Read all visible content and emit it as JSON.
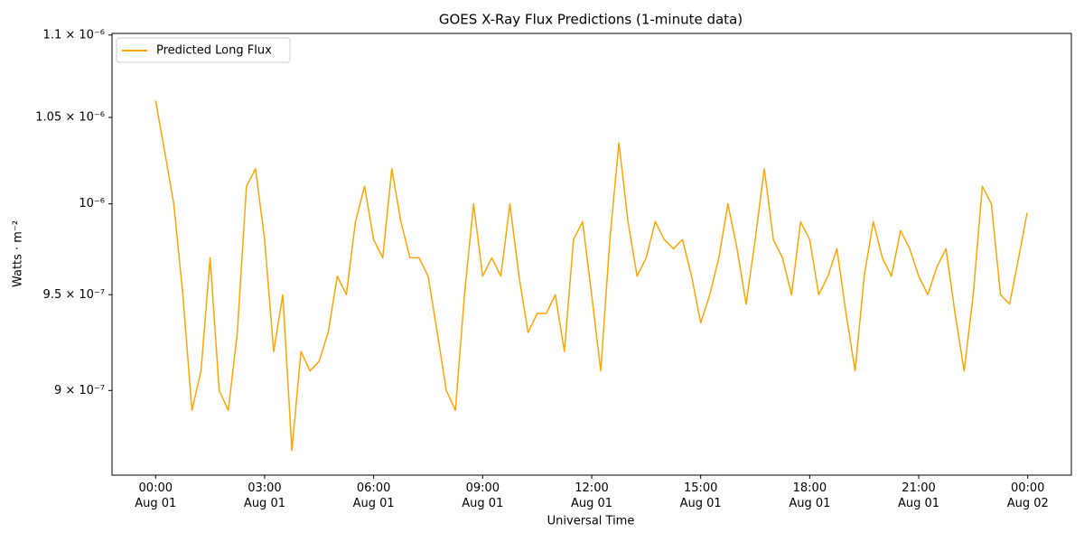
{
  "chart_data": {
    "type": "line",
    "title": "GOES X-Ray Flux Predictions (1-minute data)",
    "x_label": "Universal Time",
    "y_label": "Watts · m⁻²",
    "y_scale": "log",
    "legend": "upper left",
    "grid": false,
    "xlim": [
      "Aug 01 00:00",
      "Aug 02 00:00"
    ],
    "xticks": [
      {
        "value": "Aug 01 00:00",
        "label": "00:00\nAug 01"
      },
      {
        "value": "Aug 01 03:00",
        "label": "03:00\nAug 01"
      },
      {
        "value": "Aug 01 06:00",
        "label": "06:00\nAug 01"
      },
      {
        "value": "Aug 01 09:00",
        "label": "09:00\nAug 01"
      },
      {
        "value": "Aug 01 12:00",
        "label": "12:00\nAug 01"
      },
      {
        "value": "Aug 01 15:00",
        "label": "15:00\nAug 01"
      },
      {
        "value": "Aug 01 18:00",
        "label": "18:00\nAug 01"
      },
      {
        "value": "Aug 01 21:00",
        "label": "21:00\nAug 01"
      },
      {
        "value": "Aug 02 00:00",
        "label": "00:00\nAug 02"
      }
    ],
    "ylim": [
      8.58e-07,
      1.101e-06
    ],
    "yticks": [
      {
        "value": 9e-07,
        "label": "9 × 10⁻⁷"
      },
      {
        "value": 9.5e-07,
        "label": "9.5 × 10⁻⁷"
      },
      {
        "value": 1e-06,
        "label": "10⁻⁶"
      },
      {
        "value": 1.05e-06,
        "label": "1.05 × 10⁻⁶"
      },
      {
        "value": 1.1e-06,
        "label": "1.1 × 10⁻⁶"
      }
    ],
    "x": [
      "Aug 01 00:00",
      "Aug 01 00:15",
      "Aug 01 00:30",
      "Aug 01 00:45",
      "Aug 01 01:00",
      "Aug 01 01:15",
      "Aug 01 01:30",
      "Aug 01 01:45",
      "Aug 01 02:00",
      "Aug 01 02:15",
      "Aug 01 02:30",
      "Aug 01 02:45",
      "Aug 01 03:00",
      "Aug 01 03:15",
      "Aug 01 03:30",
      "Aug 01 03:45",
      "Aug 01 04:00",
      "Aug 01 04:15",
      "Aug 01 04:30",
      "Aug 01 04:45",
      "Aug 01 05:00",
      "Aug 01 05:15",
      "Aug 01 05:30",
      "Aug 01 05:45",
      "Aug 01 06:00",
      "Aug 01 06:15",
      "Aug 01 06:30",
      "Aug 01 06:45",
      "Aug 01 07:00",
      "Aug 01 07:15",
      "Aug 01 07:30",
      "Aug 01 07:45",
      "Aug 01 08:00",
      "Aug 01 08:15",
      "Aug 01 08:30",
      "Aug 01 08:45",
      "Aug 01 09:00",
      "Aug 01 09:15",
      "Aug 01 09:30",
      "Aug 01 09:45",
      "Aug 01 10:00",
      "Aug 01 10:15",
      "Aug 01 10:30",
      "Aug 01 10:45",
      "Aug 01 11:00",
      "Aug 01 11:15",
      "Aug 01 11:30",
      "Aug 01 11:45",
      "Aug 01 12:00",
      "Aug 01 12:15",
      "Aug 01 12:30",
      "Aug 01 12:45",
      "Aug 01 13:00",
      "Aug 01 13:15",
      "Aug 01 13:30",
      "Aug 01 13:45",
      "Aug 01 14:00",
      "Aug 01 14:15",
      "Aug 01 14:30",
      "Aug 01 14:45",
      "Aug 01 15:00",
      "Aug 01 15:15",
      "Aug 01 15:30",
      "Aug 01 15:45",
      "Aug 01 16:00",
      "Aug 01 16:15",
      "Aug 01 16:30",
      "Aug 01 16:45",
      "Aug 01 17:00",
      "Aug 01 17:15",
      "Aug 01 17:30",
      "Aug 01 17:45",
      "Aug 01 18:00",
      "Aug 01 18:15",
      "Aug 01 18:30",
      "Aug 01 18:45",
      "Aug 01 19:00",
      "Aug 01 19:15",
      "Aug 01 19:30",
      "Aug 01 19:45",
      "Aug 01 20:00",
      "Aug 01 20:15",
      "Aug 01 20:30",
      "Aug 01 20:45",
      "Aug 01 21:00",
      "Aug 01 21:15",
      "Aug 01 21:30",
      "Aug 01 21:45",
      "Aug 01 22:00",
      "Aug 01 22:15",
      "Aug 01 22:30",
      "Aug 01 22:45",
      "Aug 01 23:00",
      "Aug 01 23:15",
      "Aug 01 23:30",
      "Aug 01 23:45",
      "Aug 01 23:59"
    ],
    "series": [
      {
        "name": "Predicted Long Flux",
        "color": "#ffa500",
        "values": [
          1.06e-06,
          1.03e-06,
          1e-06,
          9.5e-07,
          8.9e-07,
          9.1e-07,
          9.7e-07,
          9e-07,
          8.9e-07,
          9.3e-07,
          1.01e-06,
          1.02e-06,
          9.8e-07,
          9.2e-07,
          9.5e-07,
          8.7e-07,
          9.2e-07,
          9.1e-07,
          9.15e-07,
          9.3e-07,
          9.6e-07,
          9.5e-07,
          9.9e-07,
          1.01e-06,
          9.8e-07,
          9.7e-07,
          1.02e-06,
          9.9e-07,
          9.7e-07,
          9.7e-07,
          9.6e-07,
          9.3e-07,
          9e-07,
          8.9e-07,
          9.5e-07,
          1e-06,
          9.6e-07,
          9.7e-07,
          9.6e-07,
          1e-06,
          9.6e-07,
          9.3e-07,
          9.4e-07,
          9.4e-07,
          9.5e-07,
          9.2e-07,
          9.8e-07,
          9.9e-07,
          9.5e-07,
          9.1e-07,
          9.8e-07,
          1.035e-06,
          9.9e-07,
          9.6e-07,
          9.7e-07,
          9.9e-07,
          9.8e-07,
          9.75e-07,
          9.8e-07,
          9.6e-07,
          9.35e-07,
          9.5e-07,
          9.7e-07,
          1e-06,
          9.75e-07,
          9.45e-07,
          9.8e-07,
          1.02e-06,
          9.8e-07,
          9.7e-07,
          9.5e-07,
          9.9e-07,
          9.8e-07,
          9.5e-07,
          9.6e-07,
          9.75e-07,
          9.4e-07,
          9.1e-07,
          9.6e-07,
          9.9e-07,
          9.7e-07,
          9.6e-07,
          9.85e-07,
          9.75e-07,
          9.6e-07,
          9.5e-07,
          9.65e-07,
          9.75e-07,
          9.4e-07,
          9.1e-07,
          9.5e-07,
          1.01e-06,
          1e-06,
          9.5e-07,
          9.45e-07,
          9.7e-07,
          9.95e-07
        ]
      }
    ]
  }
}
